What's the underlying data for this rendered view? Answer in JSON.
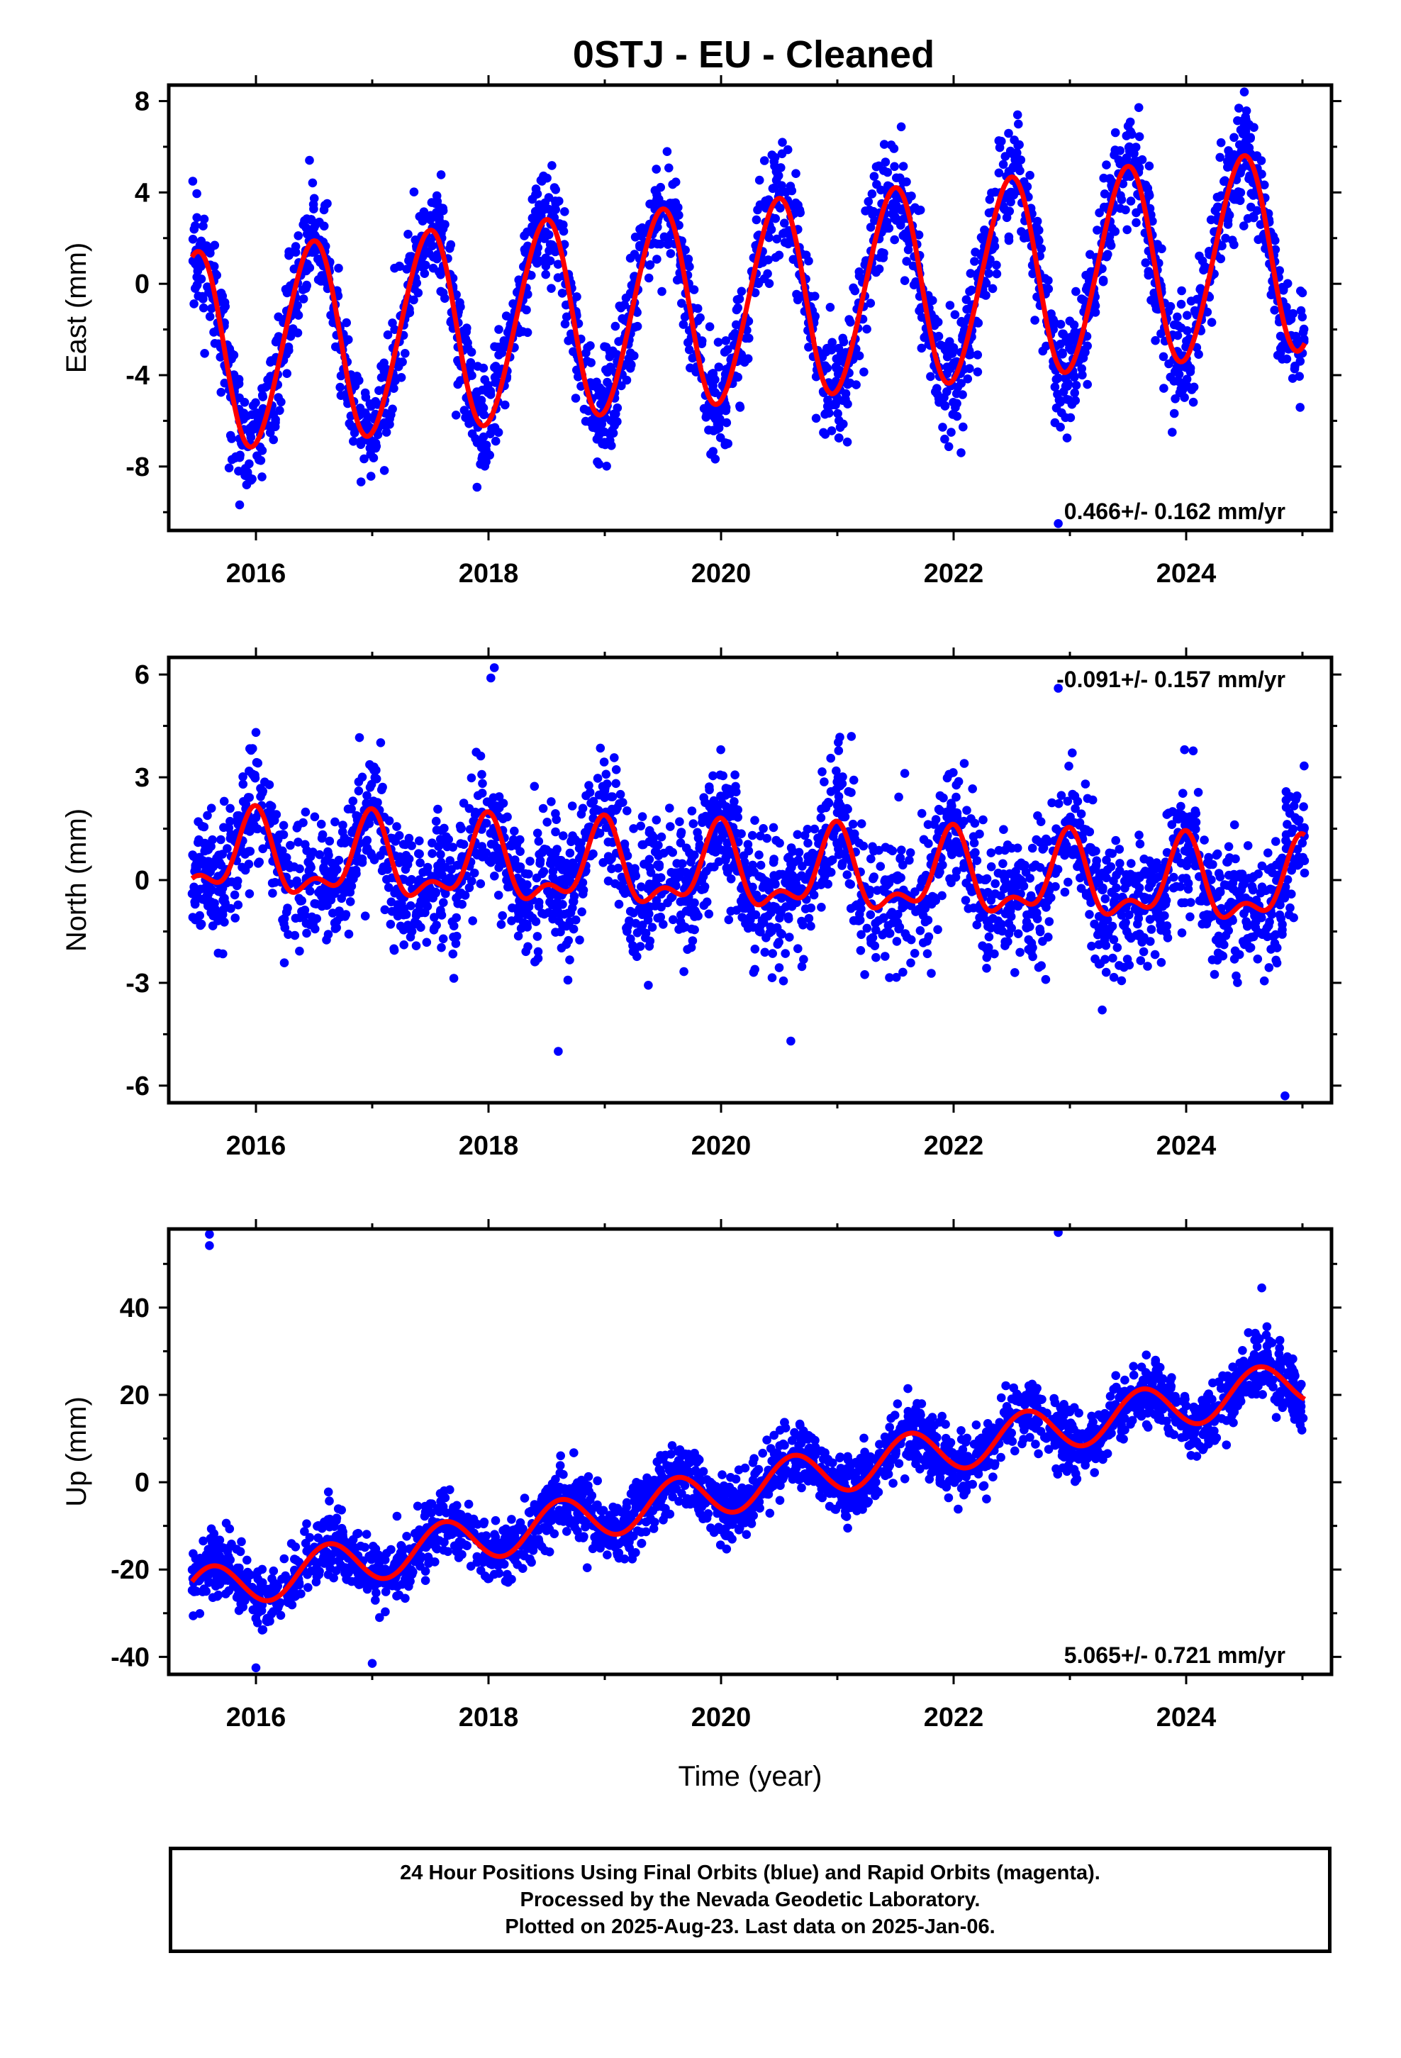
{
  "title": "0STJ  - EU - Cleaned",
  "chart_data": [
    {
      "type": "scatter",
      "panel": "east",
      "ylabel": "East (mm)",
      "xlabel": "",
      "xlim": [
        2015.25,
        2025.25
      ],
      "ylim": [
        -10.8,
        8.7
      ],
      "yticks": [
        -8,
        -4,
        0,
        4,
        8
      ],
      "xticks": [
        2016,
        2018,
        2020,
        2022,
        2024
      ],
      "rate_label": "0.466+/- 0.162 mm/yr",
      "series": [
        {
          "name": "",
          "color": "#0000ff",
          "kind": "points",
          "model": {
            "start": 2015.45,
            "end": 2025.02,
            "offset": -0.8,
            "slope": 0.466,
            "ref": 2020.2,
            "annual_amp": 4.35,
            "annual_peak": 2020.48,
            "semi_amp": 0.3,
            "semi_peak": 2020.1,
            "noise_sd": 1.2,
            "n": 2600
          }
        },
        {
          "name": "",
          "color": "#ff0000",
          "kind": "fit-line"
        }
      ],
      "outliers": [
        [
          2015.85,
          -8.2
        ],
        [
          2018.95,
          -7.9
        ],
        [
          2022.9,
          -10.5
        ],
        [
          2024.5,
          8.4
        ],
        [
          2023.88,
          -6.5
        ],
        [
          2022.55,
          7.4
        ]
      ]
    },
    {
      "type": "scatter",
      "panel": "north",
      "ylabel": "North (mm)",
      "xlabel": "",
      "xlim": [
        2015.25,
        2025.25
      ],
      "ylim": [
        -6.5,
        6.5
      ],
      "yticks": [
        -6,
        -3,
        0,
        3,
        6
      ],
      "xticks": [
        2016,
        2018,
        2020,
        2022,
        2024
      ],
      "rate_label": "-0.091+/- 0.157 mm/yr",
      "series": [
        {
          "name": "",
          "color": "#0000ff",
          "kind": "points",
          "model": {
            "start": 2015.45,
            "end": 2025.02,
            "offset": 0.2,
            "slope": -0.091,
            "ref": 2020.2,
            "annual_amp": 1.05,
            "annual_peak": 2020.98,
            "semi_amp": 0.55,
            "semi_peak": 2020.0,
            "noise_sd": 0.95,
            "n": 2600
          }
        },
        {
          "name": "",
          "color": "#ff0000",
          "kind": "fit-line"
        }
      ],
      "outliers": [
        [
          2018.05,
          6.2
        ],
        [
          2018.02,
          5.9
        ],
        [
          2022.9,
          5.6
        ],
        [
          2018.6,
          -5.0
        ],
        [
          2024.85,
          -6.3
        ],
        [
          2020.6,
          -4.7
        ]
      ]
    },
    {
      "type": "scatter",
      "panel": "up",
      "ylabel": "Up (mm)",
      "xlabel": "Time (year)",
      "xlim": [
        2015.25,
        2025.25
      ],
      "ylim": [
        -44,
        58
      ],
      "yticks": [
        -40,
        -20,
        0,
        20,
        40
      ],
      "xticks": [
        2016,
        2018,
        2020,
        2022,
        2024
      ],
      "rate_label": "5.065+/- 0.721 mm/yr",
      "series": [
        {
          "name": "",
          "color": "#0000ff",
          "kind": "points",
          "model": {
            "start": 2015.45,
            "end": 2025.02,
            "offset": -1.2,
            "slope": 5.065,
            "ref": 2020.2,
            "annual_amp": 5.2,
            "annual_peak": 2020.62,
            "semi_amp": 0.0,
            "semi_peak": 2020.0,
            "noise_sd": 3.6,
            "n": 2600
          }
        },
        {
          "name": "",
          "color": "#ff0000",
          "kind": "fit-line"
        }
      ],
      "outliers": [
        [
          2015.6,
          56.8
        ],
        [
          2015.6,
          54.2
        ],
        [
          2022.9,
          57.2
        ],
        [
          2017.0,
          -41.5
        ],
        [
          2016.0,
          -42.5
        ],
        [
          2024.65,
          44.5
        ]
      ]
    }
  ],
  "footer": {
    "line1": "24 Hour Positions Using Final Orbits (blue) and Rapid Orbits (magenta).",
    "line2": "Processed by the Nevada Geodetic Laboratory.",
    "line3": "Plotted on 2025-Aug-23. Last data on 2025-Jan-06."
  }
}
